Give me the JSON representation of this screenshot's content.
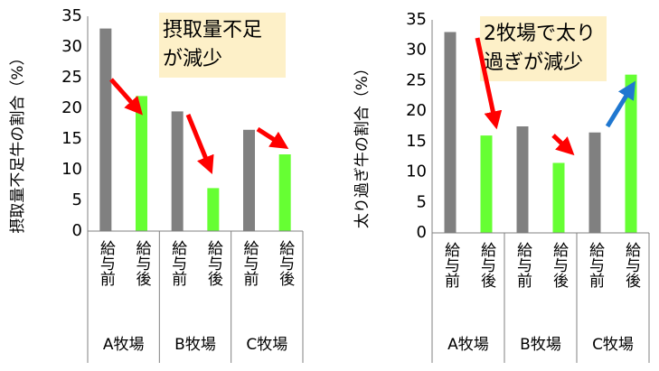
{
  "chart_data": [
    {
      "type": "bar",
      "y_label": "摂取量不足牛の割合（%）",
      "annotation": [
        "摂取量不足",
        "が減少"
      ],
      "groups": [
        "A牧場",
        "B牧場",
        "C牧場"
      ],
      "categories": [
        "給与前",
        "給与後",
        "給与前",
        "給与後",
        "給与前",
        "給与後"
      ],
      "values": [
        33,
        22,
        19.5,
        7,
        16.5,
        12.5
      ],
      "colors": [
        "#808080",
        "#66ff33",
        "#808080",
        "#66ff33",
        "#808080",
        "#66ff33"
      ],
      "ylim": [
        0,
        35
      ],
      "yticks": [
        0,
        5,
        10,
        15,
        20,
        25,
        30,
        35
      ],
      "grid": false
    },
    {
      "type": "bar",
      "y_label": "太り過ぎ牛の割合（%）",
      "annotation": [
        "2牧場で太り",
        "過ぎが減少"
      ],
      "groups": [
        "A牧場",
        "B牧場",
        "C牧場"
      ],
      "categories": [
        "給与前",
        "給与後",
        "給与前",
        "給与後",
        "給与前",
        "給与後"
      ],
      "values": [
        33,
        16,
        17.5,
        11.5,
        16.5,
        26
      ],
      "colors": [
        "#808080",
        "#66ff33",
        "#808080",
        "#66ff33",
        "#808080",
        "#66ff33"
      ],
      "ylim": [
        0,
        35
      ],
      "yticks": [
        0,
        5,
        10,
        15,
        20,
        25,
        30,
        35
      ],
      "grid": false
    }
  ]
}
